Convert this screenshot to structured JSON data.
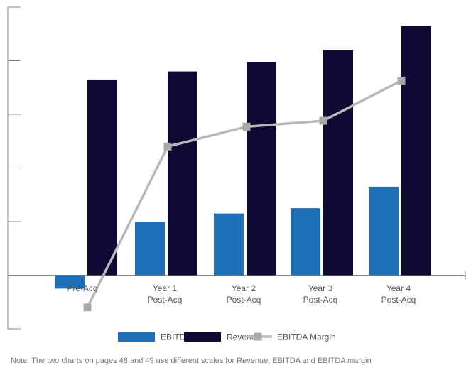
{
  "chart_data": {
    "type": "bar",
    "categories": [
      [
        "Pre-Acq"
      ],
      [
        "Year 1",
        "Post-Acq"
      ],
      [
        "Year 2",
        "Post-Acq"
      ],
      [
        "Year 3",
        "Post-Acq"
      ],
      [
        "Year 4",
        "Post-Acq"
      ]
    ],
    "series": [
      {
        "name": "EBITDA",
        "kind": "bar",
        "color": "#1f6fb7",
        "values": [
          -0.25,
          1.0,
          1.15,
          1.25,
          1.65
        ]
      },
      {
        "name": "Revenue",
        "kind": "bar",
        "color": "#0f0a33",
        "values": [
          3.65,
          3.8,
          3.97,
          4.2,
          4.65
        ]
      },
      {
        "name": "EBITDA Margin",
        "kind": "line",
        "color": "#b8b8b8",
        "values": [
          -0.6,
          2.4,
          2.77,
          2.88,
          3.63
        ]
      }
    ],
    "ylim": [
      -1.0,
      5.0
    ],
    "ytick_step": 1.0,
    "yticklabels": false,
    "grid": false,
    "legend": [
      "EBITDA",
      "Revenue",
      "EBITDA Margin"
    ],
    "legend_position": "bottom-center"
  },
  "note": "Note: The two charts on pages 48 and 49 use different scales for Revenue, EBITDA and EBITDA margin"
}
